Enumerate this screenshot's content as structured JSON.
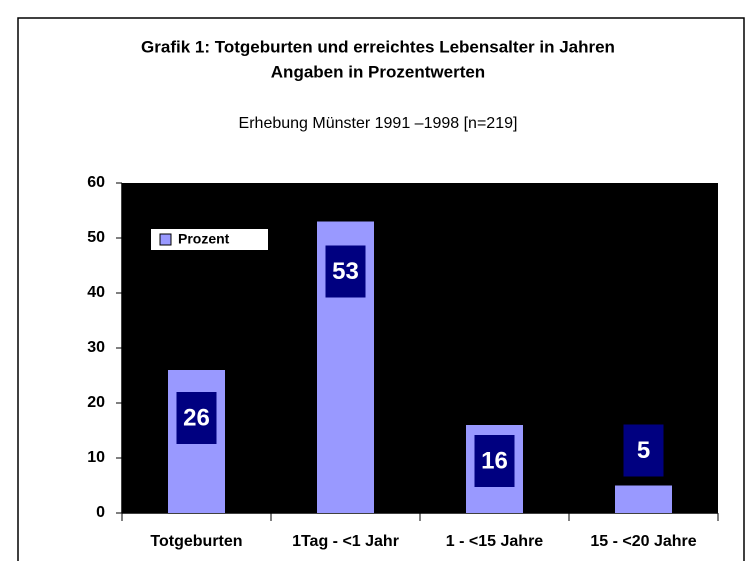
{
  "chart_data": {
    "type": "bar",
    "title": "Grafik 1:  Totgeburten und erreichtes Lebensalter in Jahren",
    "subtitle_line": "Angaben in Prozentwerten",
    "subtitle": "Erhebung Münster 1991 –1998 [n=219]",
    "categories": [
      "Totgeburten",
      "1Tag - <1 Jahr",
      "1 - <15 Jahre",
      "15 - <20 Jahre"
    ],
    "series": [
      {
        "name": "Prozent",
        "color": "#9999ff",
        "values": [
          26,
          53,
          16,
          5
        ]
      }
    ],
    "ylim": [
      0,
      60
    ],
    "yticks": [
      0,
      10,
      20,
      30,
      40,
      50,
      60
    ],
    "plot_background": "#000000",
    "label_box_color": "#000080",
    "legend": "upper left"
  }
}
